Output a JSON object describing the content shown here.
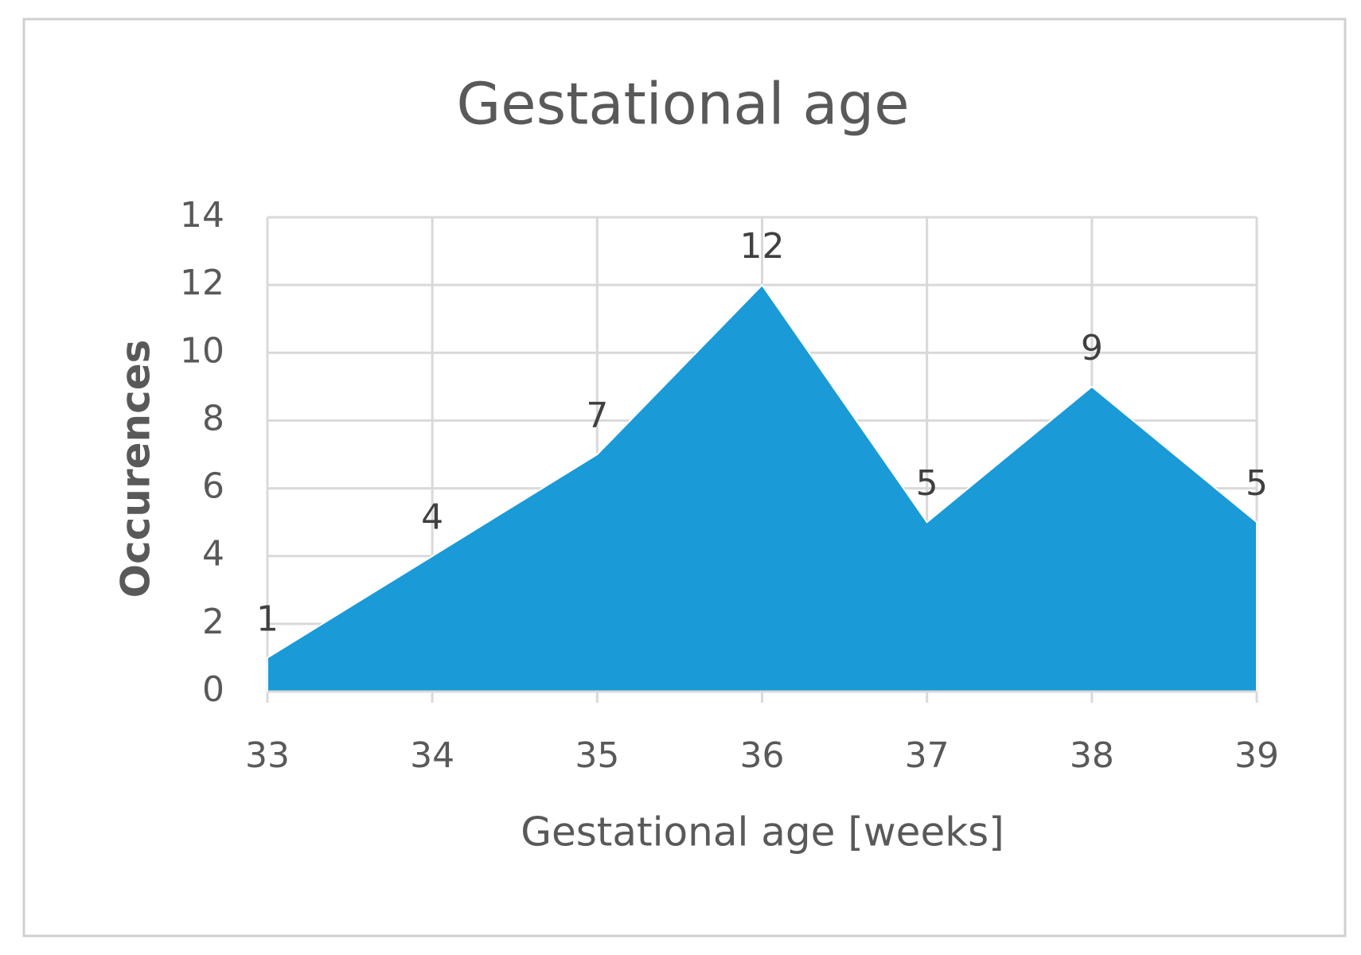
{
  "chart_data": {
    "type": "area",
    "title": "Gestational age",
    "x_label": "Gestational age [weeks]",
    "y_label": "Occurences",
    "x": [
      33,
      34,
      35,
      36,
      37,
      38,
      39
    ],
    "values": [
      1,
      4,
      7,
      12,
      5,
      9,
      5
    ],
    "color": "#1a9ad6",
    "xlim": [
      33,
      39
    ],
    "xticks": [
      33,
      34,
      35,
      36,
      37,
      38,
      39
    ],
    "ylim": [
      0,
      14
    ],
    "yticks": [
      0,
      2,
      4,
      6,
      8,
      10,
      12,
      14
    ],
    "grid": true
  }
}
